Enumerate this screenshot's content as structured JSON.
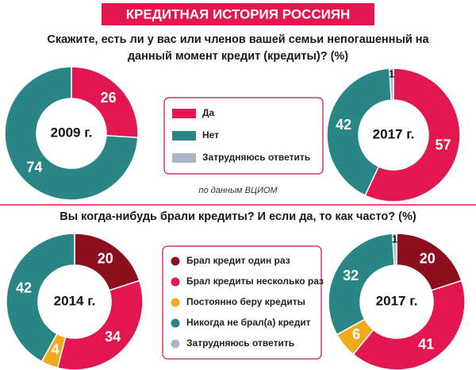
{
  "header": {
    "title": "КРЕДИТНАЯ ИСТОРИЯ РОССИЯН"
  },
  "chart_data": [
    {
      "type": "donut",
      "title": "Скажите, есть ли у вас или членов вашей семьи непогашенный на данный момент кредит (кредиты)? (%)",
      "source": "по данным ВЦИОМ",
      "categories": [
        "Да",
        "Нет",
        "Затрудняюсь ответить"
      ],
      "colors": [
        "#e3174f",
        "#2a8585",
        "#a9b8c4"
      ],
      "series": [
        {
          "name": "2009 г.",
          "values": [
            26,
            74,
            null
          ]
        },
        {
          "name": "2017 г.",
          "values": [
            57,
            42,
            1
          ]
        }
      ]
    },
    {
      "type": "donut",
      "title": "Вы когда-нибудь брали кредиты? И если да, то как часто? (%)",
      "categories": [
        "Брал кредит один раз",
        "Брал кредиты несколько раз",
        "Постоянно беру кредиты",
        "Никогда не брал(а) кредит",
        "Затрудняюсь ответить"
      ],
      "colors": [
        "#8c0f1e",
        "#e3174f",
        "#f2a91c",
        "#2a8585",
        "#a9b8c4"
      ],
      "series": [
        {
          "name": "2014 г.",
          "values": [
            20,
            34,
            4,
            42,
            null
          ]
        },
        {
          "name": "2017 г.",
          "values": [
            20,
            41,
            6,
            32,
            1
          ]
        }
      ]
    }
  ]
}
